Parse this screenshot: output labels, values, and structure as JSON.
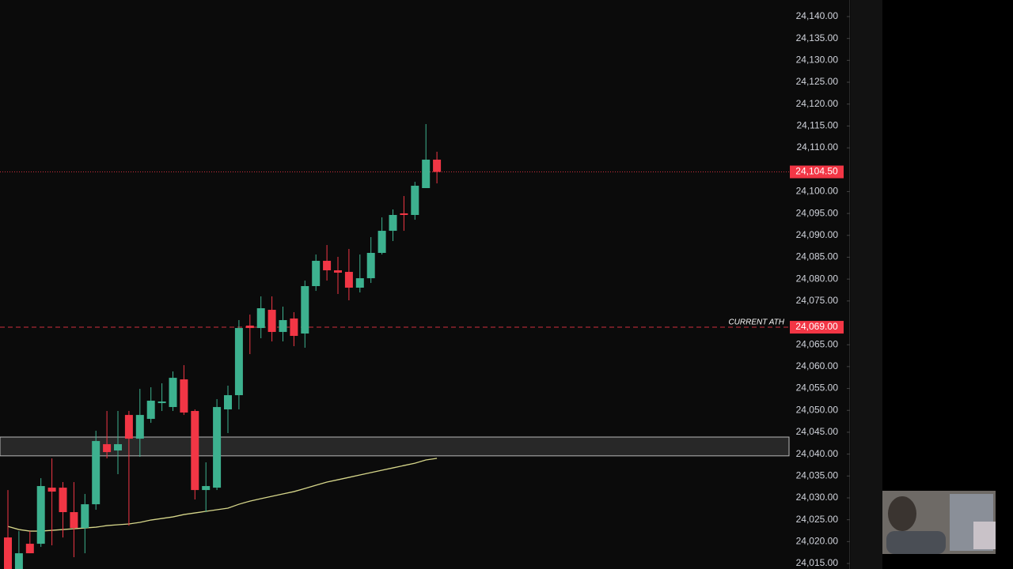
{
  "chart_data": {
    "type": "candlestick",
    "ylim": [
      24013.74,
      24143.79
    ],
    "yticks": [
      {
        "value": 24140,
        "label": "24,140.00"
      },
      {
        "value": 24135,
        "label": "24,135.00"
      },
      {
        "value": 24130,
        "label": "24,130.00"
      },
      {
        "value": 24125,
        "label": "24,125.00"
      },
      {
        "value": 24120,
        "label": "24,120.00"
      },
      {
        "value": 24115,
        "label": "24,115.00"
      },
      {
        "value": 24110,
        "label": "24,110.00"
      },
      {
        "value": 24100,
        "label": "24,100.00"
      },
      {
        "value": 24095,
        "label": "24,095.00"
      },
      {
        "value": 24090,
        "label": "24,090.00"
      },
      {
        "value": 24085,
        "label": "24,085.00"
      },
      {
        "value": 24080,
        "label": "24,080.00"
      },
      {
        "value": 24075,
        "label": "24,075.00"
      },
      {
        "value": 24065,
        "label": "24,065.00"
      },
      {
        "value": 24060,
        "label": "24,060.00"
      },
      {
        "value": 24055,
        "label": "24,055.00"
      },
      {
        "value": 24050,
        "label": "24,050.00"
      },
      {
        "value": 24045,
        "label": "24,045.00"
      },
      {
        "value": 24040,
        "label": "24,040.00"
      },
      {
        "value": 24035,
        "label": "24,035.00"
      },
      {
        "value": 24030,
        "label": "24,030.00"
      },
      {
        "value": 24025,
        "label": "24,025.00"
      },
      {
        "value": 24020,
        "label": "24,020.00"
      },
      {
        "value": 24015,
        "label": "24,015.00"
      }
    ],
    "up_color": "#3db18f",
    "down_color": "#f23645",
    "open": [
      24020.95,
      24013.73,
      24019.51,
      24019.51,
      24032.33,
      24032.33,
      24026.74,
      24023.12,
      24028.54,
      24042.27,
      24040.83,
      24048.95,
      24043.53,
      24048.05,
      24051.66,
      24050.76,
      24057.08,
      24049.86,
      24031.79,
      24032.33,
      24050.22,
      24053.47,
      24069.37,
      24068.82,
      24072.98,
      24067.92,
      24070.99,
      24067.56,
      24078.4,
      24084.18,
      24082.01,
      24081.65,
      24078.04,
      24080.2,
      24085.99,
      24091.04,
      24095.02,
      24094.66,
      24100.8,
      24107.3
    ],
    "high": [
      24031.79,
      24022.4,
      24022.4,
      24034.5,
      24039.02,
      24033.6,
      24033.6,
      24030.89,
      24045.34,
      24049.86,
      24049.86,
      24049.86,
      24054.91,
      24055.28,
      24056.18,
      24058.89,
      24060.33,
      24050.22,
      24038.12,
      24052.57,
      24055.64,
      24070.63,
      24071.89,
      24076.05,
      24076.05,
      24073.7,
      24072.44,
      24079.66,
      24085.62,
      24087.79,
      24085.08,
      24086.89,
      24085.62,
      24089.6,
      24094.11,
      24095.92,
      24098.99,
      24102.24,
      24115.43,
      24109.11
    ],
    "low": [
      24011.92,
      24011.92,
      24017.34,
      24018.79,
      24019.15,
      24020.95,
      24016.44,
      24017.34,
      24027.28,
      24039.02,
      24035.41,
      24023.66,
      24039.38,
      24047.15,
      24049.86,
      24049.86,
      24048.95,
      24029.63,
      24026.74,
      24031.79,
      24044.8,
      24050.22,
      24062.86,
      24066.48,
      24065.75,
      24065.75,
      24064.67,
      24064.31,
      24077.31,
      24079.66,
      24076.59,
      24075.15,
      24076.95,
      24079.12,
      24085.62,
      24088.69,
      24091.04,
      24093.57,
      24100.8,
      24101.88
    ],
    "close": [
      24013.73,
      24017.34,
      24017.34,
      24032.7,
      24031.43,
      24026.74,
      24023.12,
      24028.54,
      24042.99,
      24040.46,
      24042.27,
      24043.53,
      24048.95,
      24052.21,
      24052.02,
      24057.44,
      24049.5,
      24031.79,
      24032.7,
      24050.76,
      24053.47,
      24068.82,
      24068.82,
      24073.34,
      24067.92,
      24070.63,
      24067.02,
      24078.4,
      24084.18,
      24082.01,
      24081.47,
      24078.04,
      24080.2,
      24085.99,
      24091.04,
      24094.66,
      24094.66,
      24101.34,
      24107.3,
      24104.5
    ],
    "moving_average": {
      "color": "#d6d68a",
      "values": [
        24023.48,
        24022.76,
        24022.4,
        24022.4,
        24022.58,
        24022.76,
        24022.94,
        24023.12,
        24023.3,
        24023.66,
        24023.85,
        24024.03,
        24024.39,
        24024.93,
        24025.29,
        24025.65,
        24026.19,
        24026.55,
        24026.92,
        24027.28,
        24027.64,
        24028.54,
        24029.26,
        24029.81,
        24030.35,
        24030.89,
        24031.43,
        24032.15,
        24032.88,
        24033.6,
        24034.14,
        24034.68,
        24035.23,
        24035.77,
        24036.31,
        24036.85,
        24037.39,
        24037.93,
        24038.66,
        24039.02
      ]
    },
    "zone": [
      24039.6,
      24043.9
    ],
    "price_lines": [
      {
        "value": 24104.5,
        "label": "24,104.50",
        "style": "dotted",
        "color": "#f23645"
      },
      {
        "value": 24069,
        "label": "24,069.00",
        "style": "dashed",
        "color": "#f23645",
        "annotation": "CURRENT ATH"
      }
    ]
  }
}
